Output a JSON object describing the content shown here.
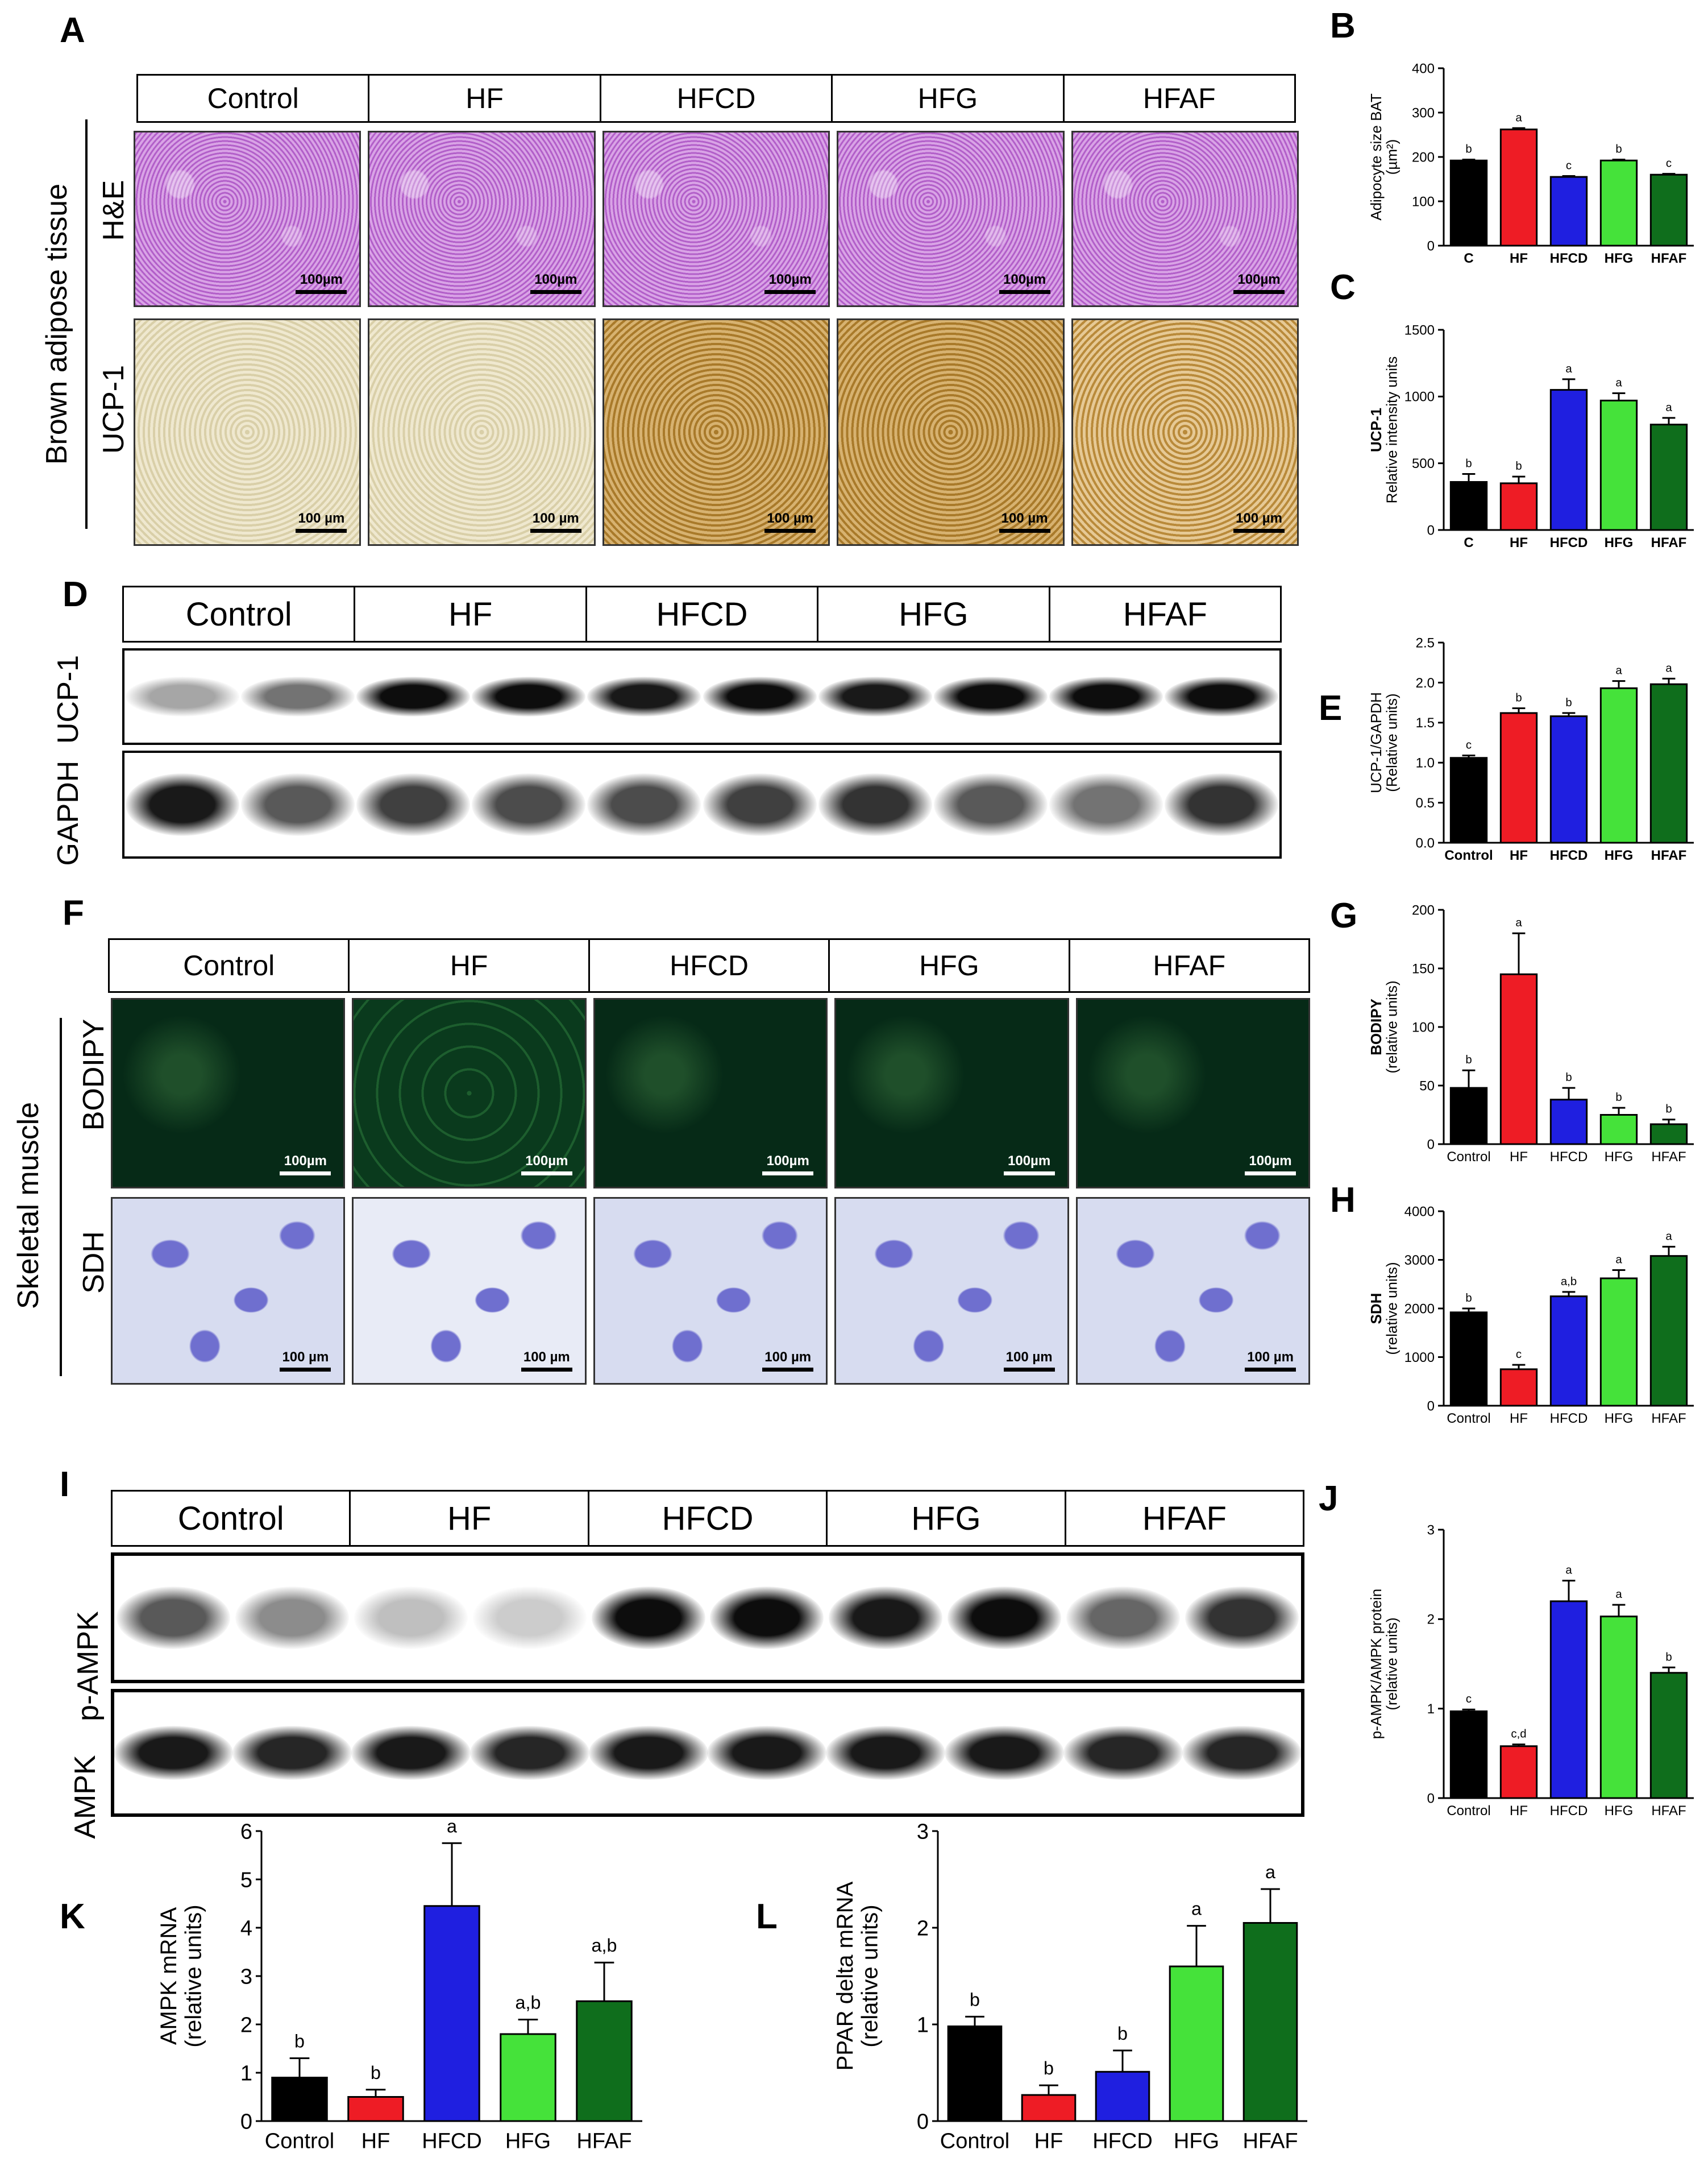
{
  "groups_full": [
    "Control",
    "HF",
    "HFCD",
    "HFG",
    "HFAF"
  ],
  "panels": {
    "A": {
      "letter": "A",
      "side_label": "Brown adipose tissue",
      "row_labels": [
        "H&E",
        "UCP-1"
      ],
      "scalebars_he": "100µm",
      "scalebars_ucp": "100 µm"
    },
    "D": {
      "letter": "D",
      "row_labels": [
        "UCP-1",
        "GAPDH"
      ]
    },
    "F": {
      "letter": "F",
      "side_label": "Skeletal muscle",
      "row_labels": [
        "BODIPY",
        "SDH"
      ],
      "scalebars_bodipy": "100µm",
      "scalebars_sdh": "100 µm"
    },
    "I": {
      "letter": "I",
      "row_labels": [
        "p-AMPK",
        "AMPK"
      ]
    }
  },
  "colors": {
    "Control": "#000000",
    "HF": "#ee1c25",
    "HFCD": "#1f1fe0",
    "HFG": "#45e23a",
    "HFAF": "#0f6e1c"
  },
  "chart_data": [
    {
      "id": "B",
      "letter": "B",
      "type": "bar",
      "categories": [
        "C",
        "HF",
        "HFCD",
        "HFG",
        "HFAF"
      ],
      "values": [
        192,
        262,
        155,
        192,
        160
      ],
      "errors": [
        2,
        3,
        2,
        2,
        2
      ],
      "sig": [
        "b",
        "a",
        "c",
        "b",
        "c"
      ],
      "ylabel": "Adipocyte size BAT",
      "ylabel2": "(µm²)",
      "ylabel_bold": false,
      "ylim": [
        0,
        400
      ],
      "yticks": [
        0,
        100,
        200,
        300,
        400
      ]
    },
    {
      "id": "C",
      "letter": "C",
      "type": "bar",
      "categories": [
        "C",
        "HF",
        "HFCD",
        "HFG",
        "HFAF"
      ],
      "values": [
        360,
        350,
        1050,
        970,
        790
      ],
      "errors": [
        60,
        50,
        80,
        55,
        50
      ],
      "sig": [
        "b",
        "b",
        "a",
        "a",
        "a"
      ],
      "ylabel": "UCP-1",
      "ylabel2": "Relative intensity units",
      "ylabel_bold": true,
      "ylim": [
        0,
        1500
      ],
      "yticks": [
        0,
        500,
        1000,
        1500
      ]
    },
    {
      "id": "E",
      "letter": "E",
      "type": "bar",
      "categories": [
        "Control",
        "HF",
        "HFCD",
        "HFG",
        "HFAF"
      ],
      "values": [
        1.06,
        1.62,
        1.58,
        1.93,
        1.98
      ],
      "errors": [
        0.03,
        0.06,
        0.04,
        0.09,
        0.07
      ],
      "sig": [
        "c",
        "b",
        "b",
        "a",
        "a"
      ],
      "ylabel": "UCP-1/GAPDH",
      "ylabel2": "(Relative units)",
      "ylabel_bold": false,
      "ylim": [
        0,
        2.5
      ],
      "yticks": [
        "0.0",
        "0.5",
        "1.0",
        "1.5",
        "2.0",
        "2.5"
      ]
    },
    {
      "id": "G",
      "letter": "G",
      "type": "bar",
      "categories": [
        "Control",
        "HF",
        "HFCD",
        "HFG",
        "HFAF"
      ],
      "values": [
        48,
        145,
        38,
        25,
        17
      ],
      "errors": [
        15,
        35,
        10,
        6,
        4
      ],
      "sig": [
        "b",
        "a",
        "b",
        "b",
        "b"
      ],
      "ylabel": "BODIPY",
      "ylabel2": "(relative units)",
      "ylabel_bold": true,
      "ylim": [
        0,
        200
      ],
      "yticks": [
        0,
        50,
        100,
        150,
        200
      ]
    },
    {
      "id": "H",
      "letter": "H",
      "type": "bar",
      "categories": [
        "Control",
        "HF",
        "HFCD",
        "HFG",
        "HFAF"
      ],
      "values": [
        1920,
        750,
        2250,
        2620,
        3080
      ],
      "errors": [
        80,
        90,
        90,
        170,
        190
      ],
      "sig": [
        "b",
        "c",
        "a,b",
        "a",
        "a"
      ],
      "ylabel": "SDH",
      "ylabel2": "(relative units)",
      "ylabel_bold": true,
      "ylim": [
        0,
        4000
      ],
      "yticks": [
        0,
        1000,
        2000,
        3000,
        4000
      ]
    },
    {
      "id": "J",
      "letter": "J",
      "type": "bar",
      "categories": [
        "Control",
        "HF",
        "HFCD",
        "HFG",
        "HFAF"
      ],
      "values": [
        0.97,
        0.58,
        2.2,
        2.03,
        1.4
      ],
      "errors": [
        0.02,
        0.02,
        0.23,
        0.13,
        0.06
      ],
      "sig": [
        "c",
        "c,d",
        "a",
        "a",
        "b"
      ],
      "ylabel": "p-AMPK/AMPK protein",
      "ylabel2": "(relative units)",
      "ylabel_bold": false,
      "ylim": [
        0,
        3
      ],
      "yticks": [
        0,
        1,
        2,
        3
      ]
    },
    {
      "id": "K",
      "letter": "K",
      "type": "bar",
      "categories": [
        "Control",
        "HF",
        "HFCD",
        "HFG",
        "HFAF"
      ],
      "values": [
        0.9,
        0.5,
        4.45,
        1.8,
        2.48
      ],
      "errors": [
        0.4,
        0.15,
        1.3,
        0.3,
        0.8
      ],
      "sig": [
        "b",
        "b",
        "a",
        "a,b",
        "a,b"
      ],
      "ylabel": "AMPK mRNA",
      "ylabel2": "(relative units)",
      "ylabel_bold": false,
      "ylim": [
        0,
        6
      ],
      "yticks": [
        0,
        1,
        2,
        3,
        4,
        5,
        6
      ]
    },
    {
      "id": "L",
      "letter": "L",
      "type": "bar",
      "categories": [
        "Control",
        "HF",
        "HFCD",
        "HFG",
        "HFAF"
      ],
      "values": [
        0.98,
        0.27,
        0.51,
        1.6,
        2.05
      ],
      "errors": [
        0.1,
        0.1,
        0.22,
        0.42,
        0.35
      ],
      "sig": [
        "b",
        "b",
        "b",
        "a",
        "a"
      ],
      "ylabel": "PPAR delta mRNA",
      "ylabel2": "(relative units)",
      "ylabel_bold": false,
      "ylim": [
        0,
        3
      ],
      "yticks": [
        0,
        1,
        2,
        3
      ]
    }
  ]
}
